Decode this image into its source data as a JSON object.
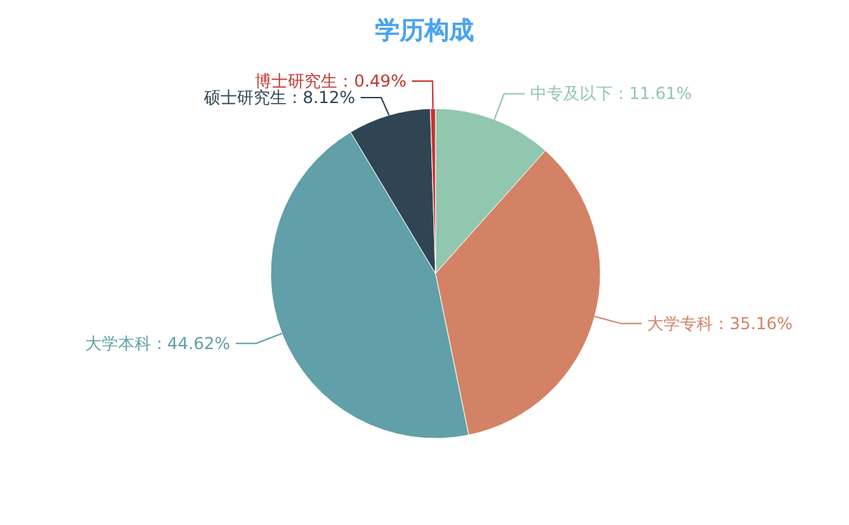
{
  "chart_data": {
    "type": "pie",
    "title": "学历构成",
    "categories": [
      "中专及以下",
      "大学专科",
      "大学本科",
      "硕士研究生",
      "博士研究生"
    ],
    "values": [
      11.61,
      35.16,
      44.62,
      8.12,
      0.49
    ],
    "value_labels": [
      "11.61%",
      "35.16%",
      "44.62%",
      "8.12%",
      "0.49%"
    ],
    "colors": [
      "#91c7ae",
      "#d48265",
      "#61a0a8",
      "#2f4554",
      "#c23531"
    ]
  }
}
